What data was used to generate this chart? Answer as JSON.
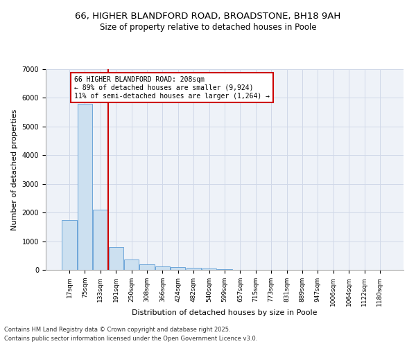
{
  "title1": "66, HIGHER BLANDFORD ROAD, BROADSTONE, BH18 9AH",
  "title2": "Size of property relative to detached houses in Poole",
  "xlabel": "Distribution of detached houses by size in Poole",
  "ylabel": "Number of detached properties",
  "categories": [
    "17sqm",
    "75sqm",
    "133sqm",
    "191sqm",
    "250sqm",
    "308sqm",
    "366sqm",
    "424sqm",
    "482sqm",
    "540sqm",
    "599sqm",
    "657sqm",
    "715sqm",
    "773sqm",
    "831sqm",
    "889sqm",
    "947sqm",
    "1006sqm",
    "1064sqm",
    "1122sqm",
    "1180sqm"
  ],
  "values": [
    1750,
    5800,
    2100,
    800,
    370,
    200,
    120,
    90,
    70,
    50,
    20,
    10,
    5,
    5,
    4,
    3,
    3,
    2,
    2,
    2,
    2
  ],
  "bar_color": "#cce0f0",
  "bar_edge_color": "#5b9bd5",
  "grid_color": "#d0d8e8",
  "bg_color": "#eef2f8",
  "vline_color": "#cc0000",
  "annotation_text": "66 HIGHER BLANDFORD ROAD: 208sqm\n← 89% of detached houses are smaller (9,924)\n11% of semi-detached houses are larger (1,264) →",
  "annotation_box_color": "#cc0000",
  "footer1": "Contains HM Land Registry data © Crown copyright and database right 2025.",
  "footer2": "Contains public sector information licensed under the Open Government Licence v3.0.",
  "ylim": [
    0,
    7000
  ],
  "title_fontsize": 9.5,
  "subtitle_fontsize": 8.5,
  "tick_fontsize": 6.5,
  "ylabel_fontsize": 8,
  "xlabel_fontsize": 8,
  "footer_fontsize": 6,
  "annotation_fontsize": 7
}
